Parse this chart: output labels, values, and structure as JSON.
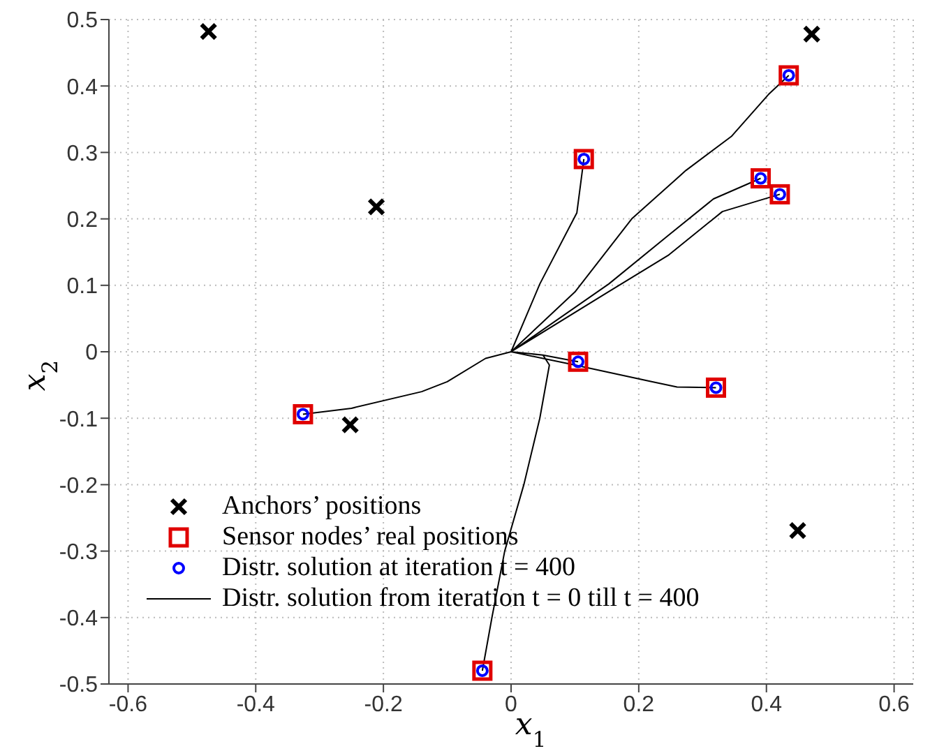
{
  "chart_data": {
    "type": "scatter",
    "xlabel": "x$_{1}$",
    "ylabel": "x$_{2}$",
    "xlim": [
      -0.63,
      0.63
    ],
    "ylim": [
      -0.5,
      0.5
    ],
    "xticks": [
      -0.6,
      -0.4,
      -0.2,
      0,
      0.2,
      0.4,
      0.6
    ],
    "yticks": [
      -0.5,
      -0.4,
      -0.3,
      -0.2,
      -0.1,
      0,
      0.1,
      0.2,
      0.3,
      0.4,
      0.5
    ],
    "grid": true,
    "legend": "bottom left",
    "series": [
      {
        "name": "Anchors’ positions",
        "type": "scatter",
        "marker": "cross",
        "color": "#000000",
        "x": [
          -0.474,
          -0.211,
          0.471,
          -0.252,
          0.449
        ],
        "values": [
          0.482,
          0.218,
          0.478,
          -0.11,
          -0.269
        ]
      },
      {
        "name": "Sensor nodes’ real positions",
        "type": "scatter",
        "marker": "square",
        "color": "#e00000",
        "x": [
          0.435,
          0.114,
          0.391,
          0.421,
          0.105,
          0.321,
          -0.326,
          -0.045
        ],
        "values": [
          0.416,
          0.29,
          0.261,
          0.237,
          -0.015,
          -0.054,
          -0.094,
          -0.48
        ]
      },
      {
        "name": "Distr. solution at iteration t = 400",
        "type": "scatter",
        "marker": "circle",
        "color": "#0000ff",
        "x": [
          0.435,
          0.114,
          0.391,
          0.421,
          0.105,
          0.321,
          -0.326,
          -0.045
        ],
        "values": [
          0.416,
          0.29,
          0.261,
          0.237,
          -0.015,
          -0.054,
          -0.094,
          -0.48
        ]
      },
      {
        "name": "Distr. solution from iteration t = 0 till t = 400",
        "type": "line",
        "marker": "none",
        "line_style": "solid",
        "color": "#000000",
        "x": [
          0,
          0.1,
          0.189,
          0.274,
          0.345,
          0.403,
          0.435,
          null,
          0,
          0.045,
          0.103,
          0.114,
          null,
          0,
          0.153,
          0.246,
          0.317,
          0.391,
          null,
          0,
          0.152,
          0.246,
          0.331,
          0.421,
          null,
          0,
          0.05,
          0.105,
          null,
          0,
          0.1,
          0.22,
          0.26,
          0.321,
          null,
          0,
          -0.04,
          -0.1,
          -0.14,
          -0.25,
          -0.326,
          null,
          0,
          0.05,
          0.06,
          0.045,
          0.02,
          -0.01,
          -0.03,
          -0.045
        ],
        "values": [
          0,
          0.09,
          0.2,
          0.273,
          0.324,
          0.387,
          0.416,
          null,
          0,
          0.102,
          0.209,
          0.29,
          null,
          0,
          0.102,
          0.175,
          0.23,
          0.261,
          null,
          0,
          0.09,
          0.145,
          0.211,
          0.237,
          null,
          0,
          -0.005,
          -0.015,
          null,
          0,
          -0.02,
          -0.045,
          -0.053,
          -0.054,
          null,
          0,
          -0.01,
          -0.045,
          -0.06,
          -0.085,
          -0.094,
          null,
          0,
          -0.005,
          -0.02,
          -0.1,
          -0.2,
          -0.3,
          -0.4,
          -0.48
        ]
      }
    ]
  }
}
